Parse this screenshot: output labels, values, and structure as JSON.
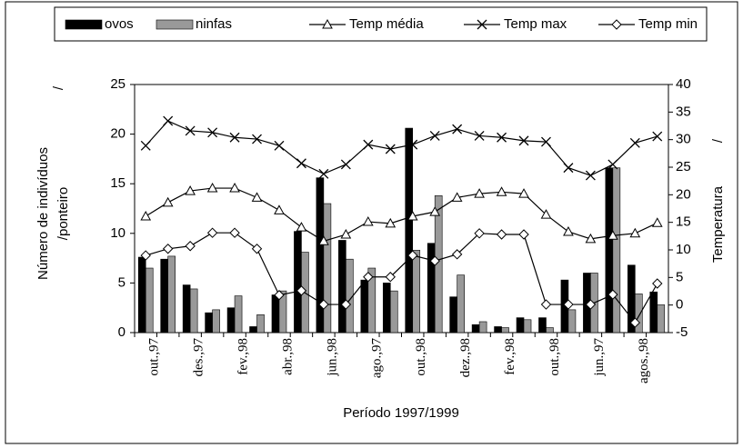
{
  "chart_data": {
    "type": "bar",
    "xlabel": "Período 1997/1999",
    "ylabel": [
      "Número de indivíduos",
      "/ponteiro"
    ],
    "y2label": "Temperatura",
    "annotations": [
      "/",
      "/"
    ],
    "categories": [
      "out.,97",
      null,
      "des.,97",
      null,
      "fev.,98",
      null,
      "abr.,98",
      null,
      "jun.,98",
      null,
      "ago.,97",
      null,
      "out.,98",
      null,
      "dez.,98",
      null,
      "fev.,98",
      null,
      "out.,98",
      null,
      "jun.,97",
      null,
      "agos.,98",
      null
    ],
    "ylim": [
      0,
      25
    ],
    "yticks": [
      0,
      5,
      10,
      15,
      20,
      25
    ],
    "y2lim": [
      -5,
      40
    ],
    "y2ticks": [
      -5,
      0,
      5,
      10,
      15,
      20,
      25,
      30,
      35,
      40
    ],
    "series": [
      {
        "name": "ovos",
        "type": "bar",
        "color": "#000000",
        "values": [
          7.6,
          7.4,
          4.8,
          2.0,
          2.5,
          0.6,
          3.8,
          10.2,
          15.6,
          9.3,
          5.3,
          5.0,
          20.6,
          9.0,
          3.6,
          0.8,
          0.6,
          1.5,
          1.5,
          5.3,
          6.0,
          16.6,
          6.8,
          4.1
        ]
      },
      {
        "name": "ninfas",
        "type": "bar",
        "color": "#999999",
        "values": [
          6.5,
          7.7,
          4.4,
          2.3,
          3.7,
          1.8,
          4.2,
          8.1,
          13.0,
          7.4,
          6.5,
          4.2,
          8.3,
          13.8,
          5.8,
          1.1,
          0.5,
          1.3,
          0.5,
          2.3,
          6.0,
          16.6,
          3.9,
          2.8
        ]
      },
      {
        "name": "Temp média",
        "type": "line",
        "marker": "triangle",
        "axis": "y2",
        "color": "#000000",
        "values": [
          16.1,
          18.6,
          20.7,
          21.2,
          21.2,
          19.5,
          17.2,
          14.1,
          11.6,
          12.8,
          15.1,
          14.8,
          16.1,
          16.9,
          19.5,
          20.2,
          20.5,
          20.2,
          16.4,
          13.3,
          12.0,
          12.6,
          13.0,
          14.9
        ]
      },
      {
        "name": "Temp max",
        "type": "line",
        "marker": "x",
        "axis": "y2",
        "color": "#000000",
        "values": [
          28.9,
          33.4,
          31.6,
          31.3,
          30.4,
          30.1,
          28.9,
          25.7,
          23.8,
          25.5,
          29.1,
          28.3,
          29.1,
          30.7,
          31.9,
          30.7,
          30.4,
          29.8,
          29.6,
          24.9,
          23.5,
          25.5,
          29.4,
          30.6
        ]
      },
      {
        "name": "Temp min",
        "type": "line",
        "marker": "diamond",
        "axis": "y2",
        "color": "#000000",
        "values": [
          9.0,
          10.2,
          10.7,
          13.1,
          13.1,
          10.2,
          1.8,
          2.6,
          0.1,
          0.1,
          5.1,
          5.1,
          9.0,
          8.0,
          9.2,
          13.0,
          12.8,
          12.8,
          0.1,
          0.1,
          0.1,
          1.9,
          -3.2,
          3.9
        ]
      }
    ]
  }
}
